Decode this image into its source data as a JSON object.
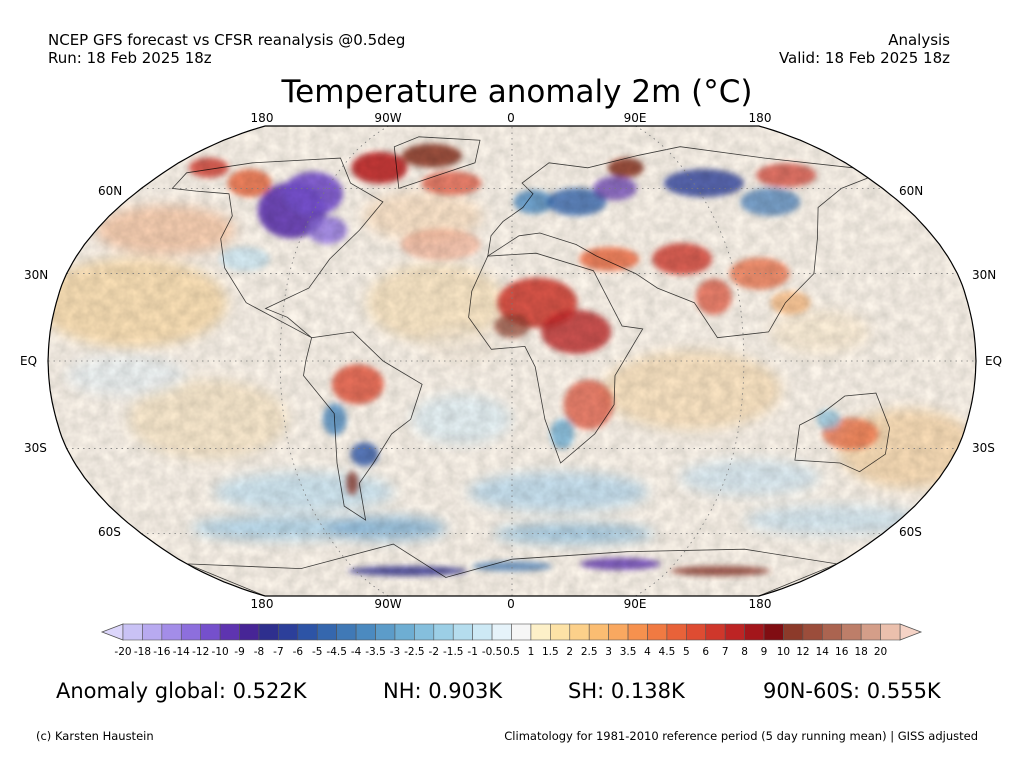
{
  "header": {
    "line1": "NCEP GFS forecast vs CFSR reanalysis @0.5deg",
    "line2": "Run: 18 Feb 2025 18z",
    "right1": "Analysis",
    "right2": "Valid: 18 Feb 2025 18z"
  },
  "title": "Temperature anomaly 2m (°C)",
  "map": {
    "projection": "Robinson",
    "lon_labels_top": [
      "180",
      "90W",
      "0",
      "90E",
      "180"
    ],
    "lon_labels_bottom": [
      "180",
      "90W",
      "0",
      "90E",
      "180"
    ],
    "lat_labels_left": [
      "60N",
      "30N",
      "EQ",
      "30S",
      "60S"
    ],
    "lat_labels_right": [
      "60N",
      "30N",
      "EQ",
      "30S",
      "60S"
    ]
  },
  "colorbar": {
    "tick_labels": [
      "-20",
      "-18",
      "-16",
      "-14",
      "-12",
      "-10",
      "-9",
      "-8",
      "-7",
      "-6",
      "-5",
      "-4.5",
      "-4",
      "-3.5",
      "-3",
      "-2.5",
      "-2",
      "-1.5",
      "-1",
      "-0.5",
      "0.5",
      "1",
      "1.5",
      "2",
      "2.5",
      "3",
      "3.5",
      "4",
      "4.5",
      "5",
      "6",
      "7",
      "8",
      "9",
      "10",
      "12",
      "14",
      "16",
      "18",
      "20"
    ],
    "colors": [
      "#c9c2f5",
      "#b8aaf0",
      "#a38de8",
      "#8d6fdd",
      "#7550cc",
      "#5e34b0",
      "#472596",
      "#2e2f8e",
      "#2c3f9a",
      "#2d54a6",
      "#3567ae",
      "#4079b6",
      "#4b8ac0",
      "#5c9cc9",
      "#6eaed3",
      "#85bfdd",
      "#9ccfe6",
      "#b5ddee",
      "#cde9f5",
      "#e6f3fa",
      "#f6f6f6",
      "#fdf0c8",
      "#fde2a6",
      "#fcd08a",
      "#fbbd72",
      "#f9a860",
      "#f6914e",
      "#f07a42",
      "#e86239",
      "#de4c32",
      "#cf372b",
      "#bd2424",
      "#a3161b",
      "#800d12",
      "#8c3a2a",
      "#9b4d3b",
      "#ab6450",
      "#bd7e69",
      "#d49e89",
      "#ebc0ad"
    ],
    "min_arrow_color": "#dcd6fb",
    "max_arrow_color": "#f5d3c6"
  },
  "stats": {
    "global": "Anomaly global: 0.522K",
    "nh": "NH: 0.903K",
    "sh": "SH: 0.138K",
    "arctic": "90N-60S: 0.555K"
  },
  "footer": {
    "left": "(c) Karsten Haustein",
    "right": "Climatology for 1981-2010 reference period (5 day running mean) | GISS adjusted"
  }
}
